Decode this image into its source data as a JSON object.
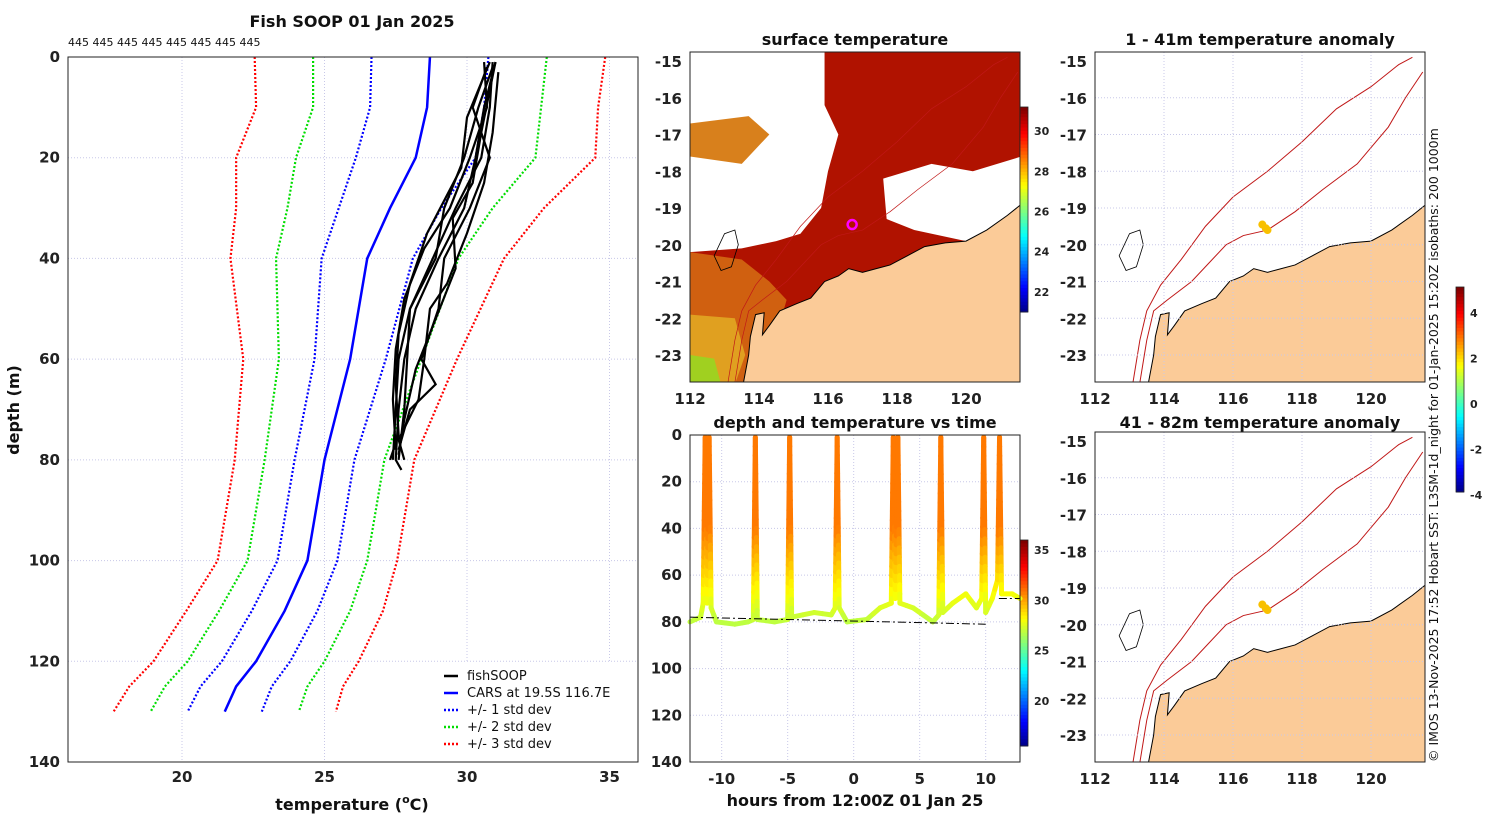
{
  "colors": {
    "cars": "#0000ff",
    "std1": "#0000ff",
    "std2": "#00dd00",
    "std3": "#ff0000",
    "fish": "#000000",
    "land": "#fbcb98",
    "sst": "#b01200",
    "isobath": "#c01818"
  },
  "chart_data": [
    {
      "type": "line",
      "title": "Fish SOOP 01 Jan 2025",
      "top_labels": [
        "445",
        "445",
        "445",
        "445",
        "445",
        "445",
        "445",
        "445"
      ],
      "xlabel": "temperature (",
      "xlabel_sup": "o",
      "xlabel_end": "C)",
      "ylabel": "depth (m)",
      "xlim": [
        16,
        36
      ],
      "ylim": [
        0,
        140
      ],
      "xticks": [
        "20",
        "25",
        "30",
        "35"
      ],
      "xtick_values": [
        20,
        25,
        30,
        35
      ],
      "yticks": [
        "0",
        "20",
        "40",
        "60",
        "80",
        "100",
        "120",
        "140"
      ],
      "ytick_values": [
        0,
        20,
        40,
        60,
        80,
        100,
        120,
        140
      ],
      "legend": [
        "fishSOOP",
        "CARS at 19.5S 116.7E",
        "+/- 1 std dev",
        "+/- 2 std dev",
        "+/- 3 std dev"
      ],
      "legend_position": "bottom-right",
      "cars": {
        "depth": [
          0,
          10,
          20,
          30,
          40,
          60,
          80,
          100,
          110,
          120,
          125,
          130
        ],
        "temp": [
          28.7,
          28.6,
          28.2,
          27.3,
          26.5,
          25.9,
          25.0,
          24.4,
          23.6,
          22.6,
          21.9,
          21.5
        ],
        "std": [
          2.05,
          2.0,
          2.1,
          1.8,
          1.6,
          1.25,
          1.05,
          1.05,
          1.15,
          1.2,
          1.25,
          1.3
        ]
      },
      "fishsoop_profiles": [
        [
          [
            1,
            30.9
          ],
          [
            10,
            30.8
          ],
          [
            20,
            30.5
          ],
          [
            30,
            29.6
          ],
          [
            40,
            28.8
          ],
          [
            50,
            28.0
          ],
          [
            60,
            27.6
          ],
          [
            70,
            27.5
          ],
          [
            80,
            27.4
          ]
        ],
        [
          [
            1,
            31.0
          ],
          [
            10,
            30.6
          ],
          [
            20,
            30.3
          ],
          [
            30,
            29.9
          ],
          [
            40,
            29.0
          ],
          [
            50,
            28.2
          ],
          [
            60,
            27.8
          ],
          [
            70,
            27.6
          ],
          [
            80,
            27.5
          ],
          [
            82,
            27.7
          ]
        ],
        [
          [
            2,
            30.7
          ],
          [
            10,
            30.2
          ],
          [
            20,
            30.8
          ],
          [
            30,
            30.1
          ],
          [
            40,
            29.2
          ],
          [
            50,
            29.0
          ],
          [
            60,
            28.4
          ],
          [
            65,
            28.9
          ],
          [
            70,
            28.0
          ],
          [
            78,
            27.6
          ]
        ],
        [
          [
            1,
            30.8
          ],
          [
            12,
            30.0
          ],
          [
            22,
            29.8
          ],
          [
            35,
            28.6
          ],
          [
            45,
            28.0
          ],
          [
            55,
            27.6
          ],
          [
            65,
            27.5
          ],
          [
            75,
            27.6
          ],
          [
            80,
            27.3
          ]
        ],
        [
          [
            3,
            31.1
          ],
          [
            15,
            30.9
          ],
          [
            25,
            30.6
          ],
          [
            35,
            30.0
          ],
          [
            45,
            29.3
          ],
          [
            50,
            28.7
          ],
          [
            60,
            28.5
          ],
          [
            68,
            28.3
          ],
          [
            76,
            27.6
          ],
          [
            80,
            27.8
          ]
        ],
        [
          [
            1,
            30.6
          ],
          [
            10,
            30.7
          ],
          [
            20,
            30.1
          ],
          [
            30,
            29.4
          ],
          [
            38,
            28.5
          ],
          [
            48,
            27.8
          ],
          [
            58,
            27.5
          ],
          [
            68,
            27.4
          ],
          [
            78,
            27.5
          ]
        ],
        [
          [
            2,
            30.9
          ],
          [
            10,
            30.4
          ],
          [
            20,
            29.9
          ],
          [
            30,
            29.2
          ],
          [
            40,
            28.9
          ],
          [
            50,
            28.0
          ],
          [
            60,
            27.9
          ],
          [
            70,
            27.8
          ],
          [
            80,
            27.6
          ]
        ],
        [
          [
            1,
            31.0
          ],
          [
            15,
            30.5
          ],
          [
            25,
            30.2
          ],
          [
            32,
            29.5
          ],
          [
            42,
            29.6
          ],
          [
            52,
            28.9
          ],
          [
            62,
            28.2
          ],
          [
            72,
            27.8
          ],
          [
            79,
            27.6
          ]
        ]
      ]
    },
    {
      "type": "heatmap",
      "title": "surface temperature",
      "xticks": [
        "112",
        "114",
        "116",
        "118",
        "120"
      ],
      "yticks": [
        "-15",
        "-16",
        "-17",
        "-18",
        "-19",
        "-20",
        "-21",
        "-22",
        "-23"
      ],
      "colorbar_ticks": [
        "22",
        "24",
        "26",
        "28",
        "30"
      ],
      "colorbar_range": [
        21,
        31.2
      ],
      "marker": {
        "lon": 116.7,
        "lat": -19.45
      }
    },
    {
      "type": "line",
      "title": "depth and temperature vs time",
      "xlabel": "hours from 12:00Z 01 Jan 25",
      "xlim": [
        -12.4,
        12.6
      ],
      "ylim": [
        0,
        140
      ],
      "xticks": [
        "-10",
        "-5",
        "0",
        "5",
        "10"
      ],
      "xtick_values": [
        -10,
        -5,
        0,
        5,
        10
      ],
      "yticks": [
        "0",
        "20",
        "40",
        "60",
        "80",
        "100",
        "120",
        "140"
      ],
      "ytick_values": [
        0,
        20,
        40,
        60,
        80,
        100,
        120,
        140
      ],
      "colorbar_ticks": [
        "20",
        "25",
        "30",
        "35"
      ],
      "colorbar_range": [
        15.5,
        36
      ],
      "track": [
        [
          -12.4,
          80
        ],
        [
          -11.6,
          78
        ],
        [
          -11.4,
          72
        ],
        [
          -11.25,
          1
        ],
        [
          -11.1,
          72
        ],
        [
          -10.95,
          1
        ],
        [
          -10.8,
          74
        ],
        [
          -10.4,
          80
        ],
        [
          -9,
          81
        ],
        [
          -8,
          80
        ],
        [
          -7.6,
          79
        ],
        [
          -7.45,
          1
        ],
        [
          -7.3,
          79
        ],
        [
          -6,
          80
        ],
        [
          -5,
          79
        ],
        [
          -4.85,
          1
        ],
        [
          -4.7,
          78
        ],
        [
          -3,
          76
        ],
        [
          -1.7,
          77
        ],
        [
          -1.4,
          74
        ],
        [
          -1.25,
          1
        ],
        [
          -1.1,
          74
        ],
        [
          -0.5,
          80
        ],
        [
          1,
          79
        ],
        [
          2,
          74
        ],
        [
          2.85,
          72
        ],
        [
          3.0,
          1
        ],
        [
          3.15,
          70
        ],
        [
          3.35,
          1
        ],
        [
          3.5,
          72
        ],
        [
          4.5,
          74
        ],
        [
          6.0,
          80
        ],
        [
          6.45,
          77
        ],
        [
          6.6,
          1
        ],
        [
          6.75,
          76
        ],
        [
          7.5,
          72
        ],
        [
          8.5,
          68
        ],
        [
          9.3,
          74
        ],
        [
          9.7,
          70
        ],
        [
          9.85,
          1
        ],
        [
          10.0,
          76
        ],
        [
          10.5,
          70
        ],
        [
          10.9,
          62
        ],
        [
          11.05,
          1
        ],
        [
          11.2,
          68
        ],
        [
          12.0,
          68
        ],
        [
          12.6,
          70
        ]
      ],
      "reference_line": [
        [
          -12.4,
          78
        ],
        [
          10,
          81
        ]
      ],
      "reference_line2": [
        [
          11,
          70
        ],
        [
          12.6,
          70
        ]
      ]
    },
    {
      "type": "heatmap",
      "title": "1 - 41m temperature anomaly",
      "xticks": [
        "112",
        "114",
        "116",
        "118",
        "120"
      ],
      "yticks": [
        "-15",
        "-16",
        "-17",
        "-18",
        "-19",
        "-20",
        "-21",
        "-22",
        "-23"
      ],
      "colorbar_ticks": [
        "4",
        "2",
        "0",
        "-2",
        "-4"
      ],
      "colorbar_range": [
        -4,
        5
      ]
    },
    {
      "type": "heatmap",
      "title": "41 - 82m temperature anomaly",
      "xticks": [
        "112",
        "114",
        "116",
        "118",
        "120"
      ],
      "yticks": [
        "-15",
        "-16",
        "-17",
        "-18",
        "-19",
        "-20",
        "-21",
        "-22",
        "-23"
      ]
    }
  ],
  "coastline": [
    [
      121.6,
      -18.9
    ],
    [
      121.2,
      -19.2
    ],
    [
      120.6,
      -19.6
    ],
    [
      120.0,
      -19.9
    ],
    [
      119.4,
      -19.95
    ],
    [
      118.8,
      -20.05
    ],
    [
      118.3,
      -20.3
    ],
    [
      117.8,
      -20.55
    ],
    [
      117.4,
      -20.65
    ],
    [
      117.0,
      -20.75
    ],
    [
      116.6,
      -20.65
    ],
    [
      116.3,
      -20.85
    ],
    [
      115.9,
      -21.0
    ],
    [
      115.5,
      -21.45
    ],
    [
      115.1,
      -21.6
    ],
    [
      114.6,
      -21.8
    ],
    [
      114.3,
      -22.2
    ],
    [
      114.1,
      -22.45
    ],
    [
      114.15,
      -21.85
    ],
    [
      113.9,
      -21.9
    ],
    [
      113.75,
      -22.5
    ],
    [
      113.7,
      -23.0
    ],
    [
      113.55,
      -23.75
    ]
  ],
  "isobaths": [
    [
      [
        113.3,
        -23.75
      ],
      [
        113.5,
        -22.6
      ],
      [
        113.7,
        -21.8
      ],
      [
        114.1,
        -21.5
      ],
      [
        114.8,
        -21.0
      ],
      [
        115.3,
        -20.5
      ],
      [
        115.8,
        -20.0
      ],
      [
        116.3,
        -19.75
      ],
      [
        117.0,
        -19.6
      ],
      [
        117.8,
        -19.1
      ],
      [
        118.6,
        -18.5
      ],
      [
        119.6,
        -17.8
      ],
      [
        120.5,
        -16.8
      ],
      [
        121.0,
        -16.0
      ],
      [
        121.5,
        -15.3
      ]
    ],
    [
      [
        113.1,
        -23.75
      ],
      [
        113.3,
        -22.6
      ],
      [
        113.5,
        -21.8
      ],
      [
        113.9,
        -21.1
      ],
      [
        114.5,
        -20.4
      ],
      [
        115.2,
        -19.5
      ],
      [
        116.0,
        -18.7
      ],
      [
        117.0,
        -18.0
      ],
      [
        118.0,
        -17.2
      ],
      [
        119.0,
        -16.3
      ],
      [
        120.0,
        -15.7
      ],
      [
        120.8,
        -15.1
      ],
      [
        121.2,
        -14.9
      ]
    ]
  ],
  "islands": [
    [
      [
        112.7,
        -20.3
      ],
      [
        113.0,
        -19.7
      ],
      [
        113.3,
        -19.6
      ],
      [
        113.4,
        -20.0
      ],
      [
        113.2,
        -20.6
      ],
      [
        112.9,
        -20.7
      ]
    ]
  ],
  "anomaly_markers": [
    {
      "lon": 116.85,
      "lat": -19.45
    },
    {
      "lon": 116.95,
      "lat": -19.55
    },
    {
      "lon": 117.0,
      "lat": -19.6
    }
  ],
  "credit": "© IMOS 13-Nov-2025 17:52 Hobart SST: L3SM-1d_night for 01-Jan-2025 15:20Z isobaths: 200  1000m"
}
